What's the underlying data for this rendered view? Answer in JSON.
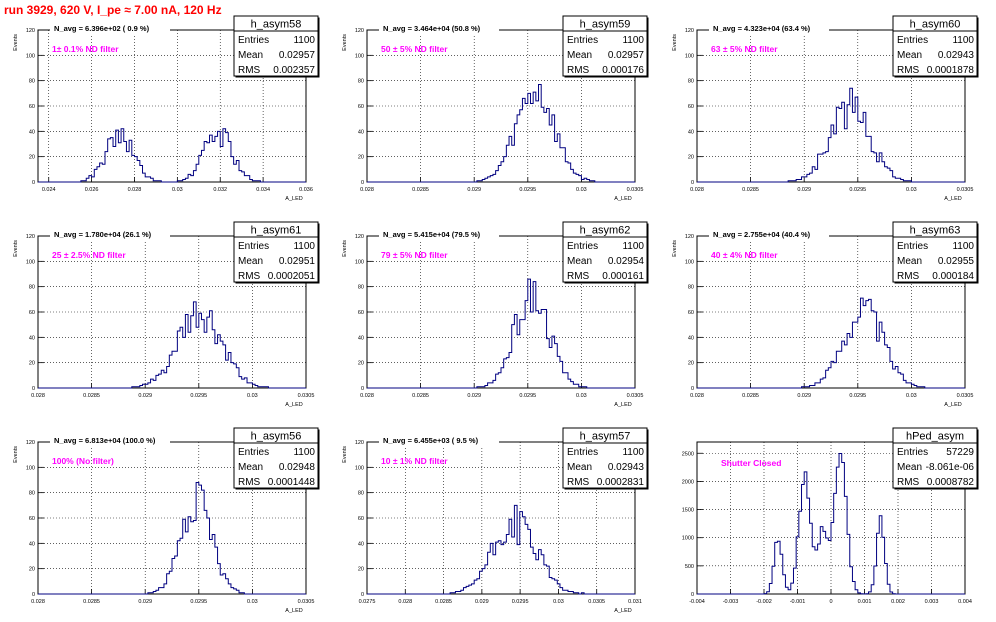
{
  "run_title": "run 3929,   620 V, I_pe ≈ 7.00 nA, 120 Hz",
  "colors": {
    "histogram": "#000080",
    "annotation": "#ff00ff",
    "title": "#ff0000",
    "grid": "#000000",
    "axis": "#000000"
  },
  "chart_data": [
    {
      "type": "histogram",
      "name": "h_asym58",
      "xlabel": "A_LED",
      "ylabel": "Events",
      "xlim": [
        0.0235,
        0.036
      ],
      "ylim": [
        0,
        120
      ],
      "xticks": [
        "0.024",
        "0.026",
        "0.028",
        "0.03",
        "0.032",
        "0.034",
        "0.036"
      ],
      "xtick_values": [
        0.024,
        0.026,
        0.028,
        0.03,
        0.032,
        0.034,
        0.036
      ],
      "yticks": [
        0,
        20,
        40,
        60,
        80,
        100,
        120
      ],
      "grid": true,
      "navg_label": "N_avg = 6.396e+02 ( 0.9 %)",
      "filter_label": "1± 0.1% ND filter",
      "stats": [
        [
          "Entries",
          "1100"
        ],
        [
          "Mean",
          "0.02957"
        ],
        [
          "RMS",
          "0.002357"
        ]
      ],
      "peaks": [
        {
          "mu": 0.0273,
          "sigma": 0.00065,
          "amp": 36
        },
        {
          "mu": 0.0319,
          "sigma": 0.00065,
          "amp": 39
        }
      ],
      "noise": 0.18,
      "bins": 100,
      "seed": 58
    },
    {
      "type": "histogram",
      "name": "h_asym59",
      "xlabel": "A_LED",
      "ylabel": "Events",
      "xlim": [
        0.028,
        0.0305
      ],
      "ylim": [
        0,
        120
      ],
      "xticks": [
        "0.028",
        "0.0285",
        "0.029",
        "0.0295",
        "0.03",
        "0.0305"
      ],
      "xtick_values": [
        0.028,
        0.0285,
        0.029,
        0.0295,
        0.03,
        0.0305
      ],
      "yticks": [
        0,
        20,
        40,
        60,
        80,
        100,
        120
      ],
      "grid": true,
      "navg_label": "N_avg = 3.464e+04 (50.8 %)",
      "filter_label": "50 ± 5% ND filter",
      "stats": [
        [
          "Entries",
          "1100"
        ],
        [
          "Mean",
          "0.02957"
        ],
        [
          "RMS",
          "0.000176"
        ]
      ],
      "peaks": [
        {
          "mu": 0.02957,
          "sigma": 0.000176,
          "amp": 72
        }
      ],
      "noise": 0.15,
      "bins": 100,
      "seed": 59
    },
    {
      "type": "histogram",
      "name": "h_asym60",
      "xlabel": "A_LED",
      "ylabel": "Events",
      "xlim": [
        0.028,
        0.0305
      ],
      "ylim": [
        0,
        120
      ],
      "xticks": [
        "0.028",
        "0.0285",
        "0.029",
        "0.0295",
        "0.03",
        "0.0305"
      ],
      "xtick_values": [
        0.028,
        0.0285,
        0.029,
        0.0295,
        0.03,
        0.0305
      ],
      "yticks": [
        0,
        20,
        40,
        60,
        80,
        100,
        120
      ],
      "grid": true,
      "navg_label": "N_avg = 4.323e+04 (63.4 %)",
      "filter_label": "63 ± 5% ND filter",
      "stats": [
        [
          "Entries",
          "1100"
        ],
        [
          "Mean",
          "0.02943"
        ],
        [
          "RMS",
          "0.0001878"
        ]
      ],
      "peaks": [
        {
          "mu": 0.02943,
          "sigma": 0.000188,
          "amp": 58
        }
      ],
      "noise": 0.18,
      "bins": 100,
      "seed": 60
    },
    {
      "type": "histogram",
      "name": "h_asym61",
      "xlabel": "A_LED",
      "ylabel": "Events",
      "xlim": [
        0.028,
        0.0305
      ],
      "ylim": [
        0,
        120
      ],
      "xticks": [
        "0.028",
        "0.0285",
        "0.029",
        "0.0295",
        "0.03",
        "0.0305"
      ],
      "xtick_values": [
        0.028,
        0.0285,
        0.029,
        0.0295,
        0.03,
        0.0305
      ],
      "yticks": [
        0,
        20,
        40,
        60,
        80,
        100,
        120
      ],
      "grid": true,
      "navg_label": "N_avg = 1.780e+04 (26.1 %)",
      "filter_label": "25 ± 2.5% ND filter",
      "stats": [
        [
          "Entries",
          "1100"
        ],
        [
          "Mean",
          "0.02951"
        ],
        [
          "RMS",
          "0.0002051"
        ]
      ],
      "peaks": [
        {
          "mu": 0.02951,
          "sigma": 0.000205,
          "amp": 56
        }
      ],
      "noise": 0.18,
      "bins": 100,
      "seed": 61
    },
    {
      "type": "histogram",
      "name": "h_asym62",
      "xlabel": "A_LED",
      "ylabel": "Events",
      "xlim": [
        0.028,
        0.0305
      ],
      "ylim": [
        0,
        120
      ],
      "xticks": [
        "0.028",
        "0.0285",
        "0.029",
        "0.0295",
        "0.03",
        "0.0305"
      ],
      "xtick_values": [
        0.028,
        0.0285,
        0.029,
        0.0295,
        0.03,
        0.0305
      ],
      "yticks": [
        0,
        20,
        40,
        60,
        80,
        100,
        120
      ],
      "grid": true,
      "navg_label": "N_avg = 5.415e+04 (79.5 %)",
      "filter_label": "79 ± 5% ND filter",
      "stats": [
        [
          "Entries",
          "1100"
        ],
        [
          "Mean",
          "0.02954"
        ],
        [
          "RMS",
          "0.000161"
        ]
      ],
      "peaks": [
        {
          "mu": 0.02954,
          "sigma": 0.000161,
          "amp": 74
        }
      ],
      "noise": 0.15,
      "bins": 100,
      "seed": 62
    },
    {
      "type": "histogram",
      "name": "h_asym63",
      "xlabel": "A_LED",
      "ylabel": "Events",
      "xlim": [
        0.028,
        0.0305
      ],
      "ylim": [
        0,
        120
      ],
      "xticks": [
        "0.028",
        "0.0285",
        "0.029",
        "0.0295",
        "0.03",
        "0.0305"
      ],
      "xtick_values": [
        0.028,
        0.0285,
        0.029,
        0.0295,
        0.03,
        0.0305
      ],
      "yticks": [
        0,
        20,
        40,
        60,
        80,
        100,
        120
      ],
      "grid": true,
      "navg_label": "N_avg = 2.755e+04 (40.4 %)",
      "filter_label": "40 ± 4% ND filter",
      "stats": [
        [
          "Entries",
          "1100"
        ],
        [
          "Mean",
          "0.02955"
        ],
        [
          "RMS",
          "0.000184"
        ]
      ],
      "peaks": [
        {
          "mu": 0.02955,
          "sigma": 0.000184,
          "amp": 62
        }
      ],
      "noise": 0.15,
      "bins": 100,
      "seed": 63
    },
    {
      "type": "histogram",
      "name": "h_asym56",
      "xlabel": "A_LED",
      "ylabel": "Events",
      "xlim": [
        0.028,
        0.0305
      ],
      "ylim": [
        0,
        120
      ],
      "xticks": [
        "0.028",
        "0.0285",
        "0.029",
        "0.0295",
        "0.03",
        "0.0305"
      ],
      "xtick_values": [
        0.028,
        0.0285,
        0.029,
        0.0295,
        0.03,
        0.0305
      ],
      "yticks": [
        0,
        20,
        40,
        60,
        80,
        100,
        120
      ],
      "grid": true,
      "navg_label": "N_avg = 6.813e+04 (100.0 %)",
      "filter_label": "100% (No filter)",
      "stats": [
        [
          "Entries",
          "1100"
        ],
        [
          "Mean",
          "0.02948"
        ],
        [
          "RMS",
          "0.0001448"
        ]
      ],
      "peaks": [
        {
          "mu": 0.02948,
          "sigma": 0.000145,
          "amp": 72
        }
      ],
      "noise": 0.15,
      "bins": 100,
      "seed": 56
    },
    {
      "type": "histogram",
      "name": "h_asym57",
      "xlabel": "A_LED",
      "ylabel": "Events",
      "xlim": [
        0.0275,
        0.031
      ],
      "ylim": [
        0,
        120
      ],
      "xticks": [
        "0.0275",
        "0.028",
        "0.0285",
        "0.029",
        "0.0295",
        "0.03",
        "0.0305",
        "0.031"
      ],
      "xtick_values": [
        0.0275,
        0.028,
        0.0285,
        0.029,
        0.0295,
        0.03,
        0.0305,
        0.031
      ],
      "yticks": [
        0,
        20,
        40,
        60,
        80,
        100,
        120
      ],
      "grid": true,
      "navg_label": "N_avg = 6.455e+03 ( 9.5 %)",
      "filter_label": "10 ± 1% ND filter",
      "stats": [
        [
          "Entries",
          "1100"
        ],
        [
          "Mean",
          "0.02943"
        ],
        [
          "RMS",
          "0.0002831"
        ]
      ],
      "peaks": [
        {
          "mu": 0.02943,
          "sigma": 0.000283,
          "amp": 56
        }
      ],
      "noise": 0.18,
      "bins": 100,
      "seed": 57
    },
    {
      "type": "histogram",
      "name": "hPed_asym",
      "xlabel": "",
      "ylabel": "",
      "xlim": [
        -0.004,
        0.004
      ],
      "ylim": [
        0,
        2700
      ],
      "xticks": [
        "-0.004",
        "-0.003",
        "-0.002",
        "-0.001",
        "0",
        "0.001",
        "0.002",
        "0.003",
        "0.004"
      ],
      "xtick_values": [
        -0.004,
        -0.003,
        -0.002,
        -0.001,
        0,
        0.001,
        0.002,
        0.003,
        0.004
      ],
      "yticks": [
        0,
        500,
        1000,
        1500,
        2000,
        2500
      ],
      "grid": true,
      "navg_label": "",
      "filter_label": "Shutter Closed",
      "stats": [
        [
          "Entries",
          "57229"
        ],
        [
          "Mean",
          "-8.061e-06"
        ],
        [
          "RMS",
          "0.0008782"
        ]
      ],
      "peaks": [
        {
          "mu": -0.00079,
          "sigma": 0.00017,
          "amp": 2050
        },
        {
          "mu": 0.00028,
          "sigma": 0.00018,
          "amp": 2500
        },
        {
          "mu": -0.00158,
          "sigma": 0.00012,
          "amp": 1000
        },
        {
          "mu": 0.00148,
          "sigma": 0.00012,
          "amp": 1300
        },
        {
          "mu": -0.00025,
          "sigma": 0.00015,
          "amp": 1100
        }
      ],
      "noise": 0.05,
      "bins": 100,
      "seed": 99
    }
  ]
}
